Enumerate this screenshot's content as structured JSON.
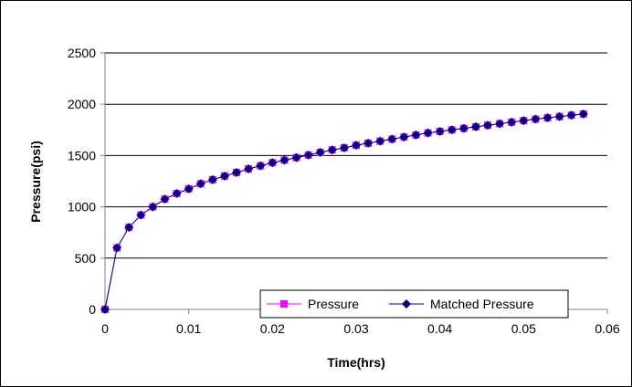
{
  "chart_data": {
    "type": "line",
    "title": "",
    "xlabel": "Time(hrs)",
    "ylabel": "Pressure(psi)",
    "xlim": [
      0,
      0.06
    ],
    "ylim": [
      0,
      2500
    ],
    "xticks": [
      0,
      0.01,
      0.02,
      0.03,
      0.04,
      0.05,
      0.06
    ],
    "xtick_labels": [
      "0",
      "0.01",
      "0.02",
      "0.03",
      "0.04",
      "0.05",
      "0.06"
    ],
    "yticks": [
      0,
      500,
      1000,
      1500,
      2000,
      2500
    ],
    "ytick_labels": [
      "0",
      "500",
      "1000",
      "1500",
      "2000",
      "2500"
    ],
    "grid": "horizontal",
    "legend_position": "bottom-right",
    "x": [
      0,
      0.00143,
      0.00286,
      0.00429,
      0.00571,
      0.00714,
      0.00857,
      0.01,
      0.01143,
      0.01286,
      0.01429,
      0.01571,
      0.01714,
      0.01857,
      0.02,
      0.02143,
      0.02286,
      0.02429,
      0.02571,
      0.02714,
      0.02857,
      0.03,
      0.03143,
      0.03286,
      0.03429,
      0.03571,
      0.03714,
      0.03857,
      0.04,
      0.04143,
      0.04286,
      0.04429,
      0.04571,
      0.04714,
      0.04857,
      0.05,
      0.05143,
      0.05286,
      0.05429,
      0.05571,
      0.05714
    ],
    "series": [
      {
        "name": "Pressure",
        "color": "#ff00ff",
        "marker": "square",
        "values": [
          0,
          600,
          800,
          920,
          1000,
          1075,
          1130,
          1175,
          1225,
          1265,
          1300,
          1335,
          1370,
          1400,
          1430,
          1455,
          1480,
          1505,
          1530,
          1555,
          1575,
          1600,
          1620,
          1640,
          1660,
          1680,
          1700,
          1720,
          1735,
          1750,
          1765,
          1780,
          1795,
          1810,
          1825,
          1840,
          1855,
          1868,
          1880,
          1893,
          1905
        ]
      },
      {
        "name": "Matched Pressure",
        "color": "#000080",
        "marker": "diamond",
        "values": [
          0,
          600,
          800,
          920,
          1000,
          1075,
          1130,
          1175,
          1225,
          1265,
          1300,
          1335,
          1370,
          1400,
          1430,
          1455,
          1480,
          1505,
          1530,
          1555,
          1575,
          1600,
          1620,
          1640,
          1660,
          1680,
          1700,
          1720,
          1735,
          1750,
          1765,
          1780,
          1795,
          1810,
          1825,
          1840,
          1855,
          1868,
          1880,
          1893,
          1905
        ]
      }
    ]
  }
}
